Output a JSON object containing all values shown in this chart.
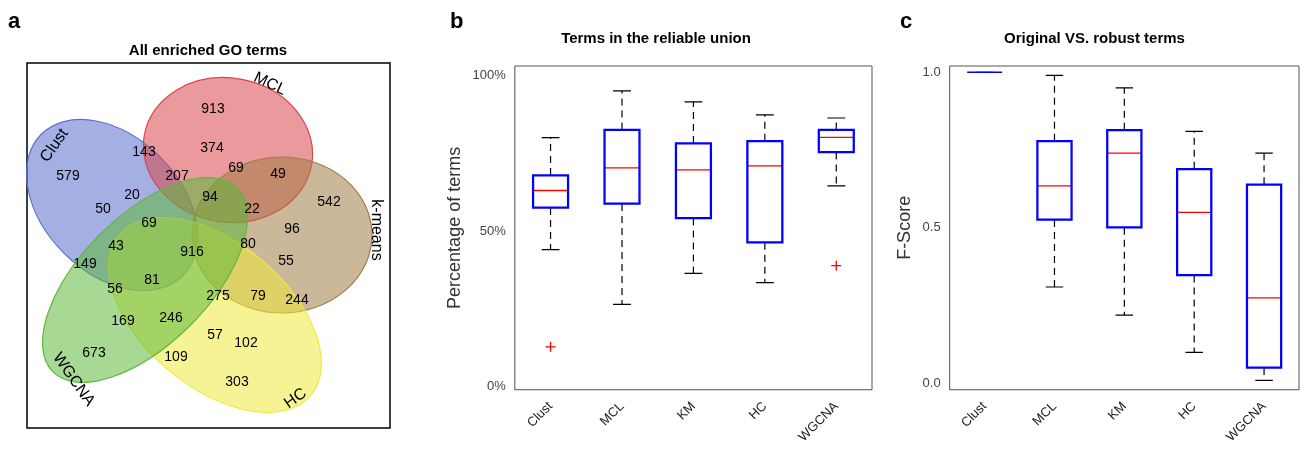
{
  "chart_data": [
    {
      "type": "other",
      "title": "All enriched GO terms",
      "annotations": [
        "a",
        "579",
        "913",
        "143",
        "374",
        "69",
        "49",
        "207",
        "542",
        "20",
        "50",
        "94",
        "22",
        "96",
        "69",
        "43",
        "916",
        "80",
        "55",
        "149",
        "81",
        "56",
        "275",
        "79",
        "244",
        "169",
        "246",
        "57",
        "102",
        "673",
        "109",
        "303"
      ],
      "categories": [
        "Clust",
        "MCL",
        "k-means",
        "HC",
        "WGCNA"
      ],
      "colors": [
        "#5a6fcc",
        "#d9474a",
        "#a07c45",
        "#eeea3c",
        "#5fb83c"
      ]
    },
    {
      "type": "box",
      "title": "Terms in the reliable union",
      "ylabel": "Percentage of terms",
      "annotations": [
        "b"
      ],
      "categories": [
        "Clust",
        "MCL",
        "KM",
        "HC",
        "WGCNA"
      ],
      "series": [
        {
          "color": "#0000ff",
          "boxes": [
            {
              "low": 44,
              "q1": 57.4,
              "median": 63,
              "q3": 68,
              "high": 80,
              "outliers": [
                12.8
              ]
            },
            {
              "low": 26.4,
              "q1": 58.7,
              "median": 70.3,
              "q3": 82.6,
              "high": 95
            },
            {
              "low": 36.4,
              "q1": 54,
              "median": 69.6,
              "q3": 78.3,
              "high": 91.5
            },
            {
              "low": 33.4,
              "q1": 46.2,
              "median": 70.9,
              "q3": 79,
              "high": 87.3
            },
            {
              "low": 64.5,
              "q1": 75.2,
              "median": 80.1,
              "q3": 82.6,
              "high": 86.3,
              "outliers": [
                38.9
              ]
            }
          ]
        }
      ],
      "ylim": [
        -1,
        103
      ],
      "yticks": [
        {
          "value": 0,
          "label": "0%"
        },
        {
          "value": 50,
          "label": "50%"
        },
        {
          "value": 100,
          "label": "100%"
        }
      ],
      "grid": false,
      "legend": false
    },
    {
      "type": "box",
      "title": "Original VS. robust terms",
      "ylabel": "F-Score",
      "annotations": [
        "c"
      ],
      "categories": [
        "Clust",
        "MCL",
        "KM",
        "HC",
        "WGCNA"
      ],
      "series": [
        {
          "color": "#0000ff",
          "boxes": [
            {
              "low": 1,
              "q1": 1,
              "median": 1,
              "q3": 1,
              "high": 1
            },
            {
              "low": 0.31,
              "q1": 0.525,
              "median": 0.635,
              "q3": 0.78,
              "high": 0.99
            },
            {
              "low": 0.22,
              "q1": 0.5,
              "median": 0.74,
              "q3": 0.815,
              "high": 0.95
            },
            {
              "low": 0.1,
              "q1": 0.347,
              "median": 0.55,
              "q3": 0.69,
              "high": 0.81
            },
            {
              "low": 0.01,
              "q1": 0.05,
              "median": 0.275,
              "q3": 0.64,
              "high": 0.74
            }
          ]
        }
      ],
      "ylim": [
        -0.02,
        1.02
      ],
      "yticks": [
        {
          "value": 0,
          "label": "0.0"
        },
        {
          "value": 0.5,
          "label": "0.5"
        },
        {
          "value": 1,
          "label": "1.0"
        }
      ],
      "grid": false,
      "legend": false
    }
  ]
}
